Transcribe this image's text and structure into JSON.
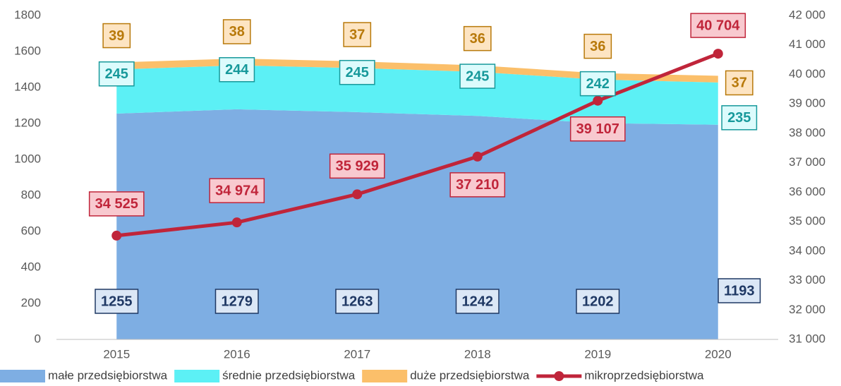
{
  "chart_data": {
    "type": "area",
    "categories": [
      "2015",
      "2016",
      "2017",
      "2018",
      "2019",
      "2020"
    ],
    "series": [
      {
        "name": "małe przedsiębiorstwa",
        "type": "area",
        "color": "#7eaee3",
        "values": [
          1255,
          1279,
          1263,
          1242,
          1202,
          1193
        ]
      },
      {
        "name": "średnie przedsiębiorstwa",
        "type": "area",
        "color": "#5cf0f5",
        "values": [
          245,
          244,
          245,
          245,
          242,
          235
        ]
      },
      {
        "name": "duże przedsiębiorstwa",
        "type": "area",
        "color": "#fbbf6a",
        "values": [
          39,
          38,
          37,
          36,
          36,
          37
        ]
      },
      {
        "name": "mikroprzedsiębiorstwa",
        "type": "line",
        "axis": "y2",
        "color": "#c0253a",
        "values": [
          34525,
          34974,
          35929,
          37210,
          39107,
          40704
        ],
        "value_labels": [
          "34 525",
          "34 974",
          "35 929",
          "37 210",
          "39 107",
          "40 704"
        ]
      }
    ],
    "ylim": [
      0,
      1800
    ],
    "yticks": [
      0,
      200,
      400,
      600,
      800,
      1000,
      1200,
      1400,
      1600,
      1800
    ],
    "y2lim": [
      31000,
      42000
    ],
    "y2ticks": [
      {
        "value": 31000,
        "label": "31 000"
      },
      {
        "value": 32000,
        "label": "32 000"
      },
      {
        "value": 33000,
        "label": "33 000"
      },
      {
        "value": 34000,
        "label": "34 000"
      },
      {
        "value": 35000,
        "label": "35 000"
      },
      {
        "value": 36000,
        "label": "36 000"
      },
      {
        "value": 37000,
        "label": "37 000"
      },
      {
        "value": 38000,
        "label": "38 000"
      },
      {
        "value": 39000,
        "label": "39 000"
      },
      {
        "value": 40000,
        "label": "40 000"
      },
      {
        "value": 41000,
        "label": "41 000"
      },
      {
        "value": 42000,
        "label": "42 000"
      }
    ],
    "grid": false,
    "legend": "bottom"
  }
}
